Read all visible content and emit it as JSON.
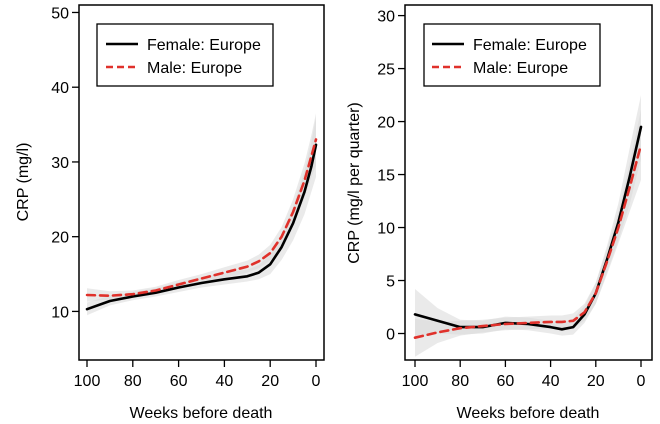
{
  "chart_data": [
    {
      "type": "line",
      "xlabel": "Weeks before death",
      "ylabel": "CRP (mg/l)",
      "xlim": [
        100,
        0
      ],
      "ylim": [
        3.5,
        51
      ],
      "x_ticks": [
        100,
        80,
        60,
        40,
        20,
        0
      ],
      "y_ticks": [
        10,
        20,
        30,
        40,
        50
      ],
      "grid": false,
      "legend_position": "top-left",
      "series": [
        {
          "name": "Female: Europe",
          "style": "solid",
          "color": "#000000",
          "x": [
            100,
            90,
            80,
            70,
            60,
            50,
            40,
            30,
            25,
            20,
            15,
            10,
            5,
            2,
            0
          ],
          "y": [
            10.3,
            11.4,
            12.0,
            12.5,
            13.2,
            13.8,
            14.3,
            14.7,
            15.2,
            16.3,
            18.6,
            21.8,
            26.0,
            29.4,
            32.3
          ],
          "band_lower": [
            9.5,
            10.8,
            11.5,
            12.0,
            12.6,
            13.2,
            13.6,
            14.0,
            14.3,
            15.0,
            16.9,
            19.5,
            23.0,
            26.0,
            28.0
          ],
          "band_upper": [
            11.2,
            12.1,
            12.6,
            13.1,
            13.9,
            14.6,
            15.2,
            15.6,
            16.2,
            17.6,
            20.2,
            24.0,
            28.8,
            32.7,
            36.0
          ]
        },
        {
          "name": "Male: Europe",
          "style": "dashed",
          "color": "#e0312b",
          "x": [
            100,
            90,
            80,
            70,
            60,
            50,
            40,
            30,
            25,
            20,
            15,
            10,
            5,
            2,
            0
          ],
          "y": [
            12.2,
            12.1,
            12.3,
            12.8,
            13.6,
            14.4,
            15.2,
            16.0,
            16.7,
            17.8,
            20.0,
            23.3,
            27.5,
            30.8,
            33.0
          ],
          "band_lower": [
            11.3,
            11.6,
            11.8,
            12.3,
            13.0,
            13.8,
            14.5,
            15.2,
            15.8,
            16.8,
            18.7,
            21.5,
            25.2,
            28.0,
            29.5
          ],
          "band_upper": [
            13.1,
            12.7,
            12.8,
            13.3,
            14.2,
            15.0,
            15.9,
            16.8,
            17.6,
            18.9,
            21.3,
            25.0,
            29.8,
            33.6,
            36.5
          ]
        }
      ]
    },
    {
      "type": "line",
      "xlabel": "Weeks before death",
      "ylabel": "CRP (mg/l per quarter)",
      "xlim": [
        100,
        0
      ],
      "ylim": [
        -2.5,
        31
      ],
      "x_ticks": [
        100,
        80,
        60,
        40,
        20,
        0
      ],
      "y_ticks": [
        0,
        5,
        10,
        15,
        20,
        25,
        30
      ],
      "grid": false,
      "legend_position": "top-left",
      "series": [
        {
          "name": "Female: Europe",
          "style": "solid",
          "color": "#000000",
          "x": [
            100,
            90,
            80,
            70,
            60,
            50,
            40,
            35,
            30,
            25,
            20,
            15,
            10,
            5,
            0
          ],
          "y": [
            1.8,
            1.2,
            0.6,
            0.6,
            1.0,
            0.9,
            0.6,
            0.4,
            0.6,
            1.8,
            3.8,
            7.0,
            10.5,
            14.8,
            19.5
          ],
          "band_lower": [
            -0.5,
            0.0,
            -0.1,
            0.0,
            0.4,
            0.3,
            0.0,
            -0.2,
            -0.1,
            1.0,
            2.8,
            5.8,
            8.8,
            12.2,
            16.5
          ],
          "band_upper": [
            4.2,
            2.4,
            1.3,
            1.2,
            1.6,
            1.5,
            1.2,
            1.0,
            1.4,
            2.6,
            4.8,
            8.3,
            12.3,
            17.5,
            22.5
          ]
        },
        {
          "name": "Male: Europe",
          "style": "dashed",
          "color": "#e0312b",
          "x": [
            100,
            90,
            80,
            70,
            60,
            50,
            40,
            35,
            30,
            25,
            20,
            15,
            10,
            5,
            0
          ],
          "y": [
            -0.4,
            0.1,
            0.5,
            0.7,
            0.9,
            1.0,
            1.1,
            1.1,
            1.2,
            2.0,
            3.8,
            6.8,
            10.0,
            13.8,
            17.8
          ],
          "band_lower": [
            -2.2,
            -0.9,
            -0.2,
            0.1,
            0.3,
            0.4,
            0.5,
            0.5,
            0.5,
            1.2,
            2.8,
            5.6,
            8.5,
            11.5,
            14.5
          ],
          "band_upper": [
            1.4,
            1.1,
            1.2,
            1.3,
            1.5,
            1.6,
            1.7,
            1.7,
            1.9,
            2.8,
            4.8,
            8.0,
            11.5,
            16.1,
            21.1
          ]
        }
      ]
    }
  ]
}
